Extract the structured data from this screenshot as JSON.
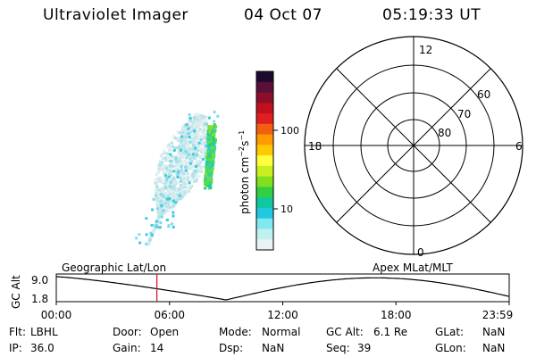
{
  "header": {
    "title": "Ultraviolet Imager",
    "date": "04 Oct 07",
    "time": "05:19:33 UT"
  },
  "colorbar": {
    "unit_label": "photon cm",
    "unit_sup1": "−2",
    "unit_mid": "s",
    "unit_sup2": "−1",
    "ticks": [
      "100",
      "10"
    ],
    "colors": [
      "#1a0a2e",
      "#5a0f3a",
      "#8a0f2a",
      "#c01020",
      "#e02020",
      "#f06010",
      "#ff9a00",
      "#ffc800",
      "#ffff40",
      "#c8f020",
      "#80e020",
      "#30d040",
      "#10c8a0",
      "#20c8e0",
      "#80e8f0",
      "#c0f0f0",
      "#e8f4f4"
    ]
  },
  "polar": {
    "mlt_labels": {
      "top": "12",
      "left": "18",
      "right": "6",
      "bottom": "0"
    },
    "lat_labels": [
      "60",
      "70",
      "80"
    ]
  },
  "timeline": {
    "left_label": "Geographic Lat/Lon",
    "right_label": "Apex MLat/MLT",
    "y_axis_title": "GC Alt",
    "y_ticks": [
      "9.0",
      "1.8"
    ],
    "x_ticks": [
      "00:00",
      "06:00",
      "12:00",
      "18:00",
      "23:59"
    ],
    "marker_time_hours": 5.33,
    "marker_color": "#cc2020",
    "curve_color": "#000000"
  },
  "info": {
    "flt_label": "Flt:",
    "flt_value": "LBHL",
    "ip_label": "IP:",
    "ip_value": "36.0",
    "door_label": "Door:",
    "door_value": "Open",
    "gain_label": "Gain:",
    "gain_value": "14",
    "mode_label": "Mode:",
    "mode_value": "Normal",
    "dsp_label": "Dsp:",
    "dsp_value": "NaN",
    "gcalt_label": "GC Alt:",
    "gcalt_value": "6.1 Re",
    "seq_label": "Seq:",
    "seq_value": "39",
    "glat_label": "GLat:",
    "glat_value": "NaN",
    "glon_label": "GLon:",
    "glon_value": "NaN"
  }
}
